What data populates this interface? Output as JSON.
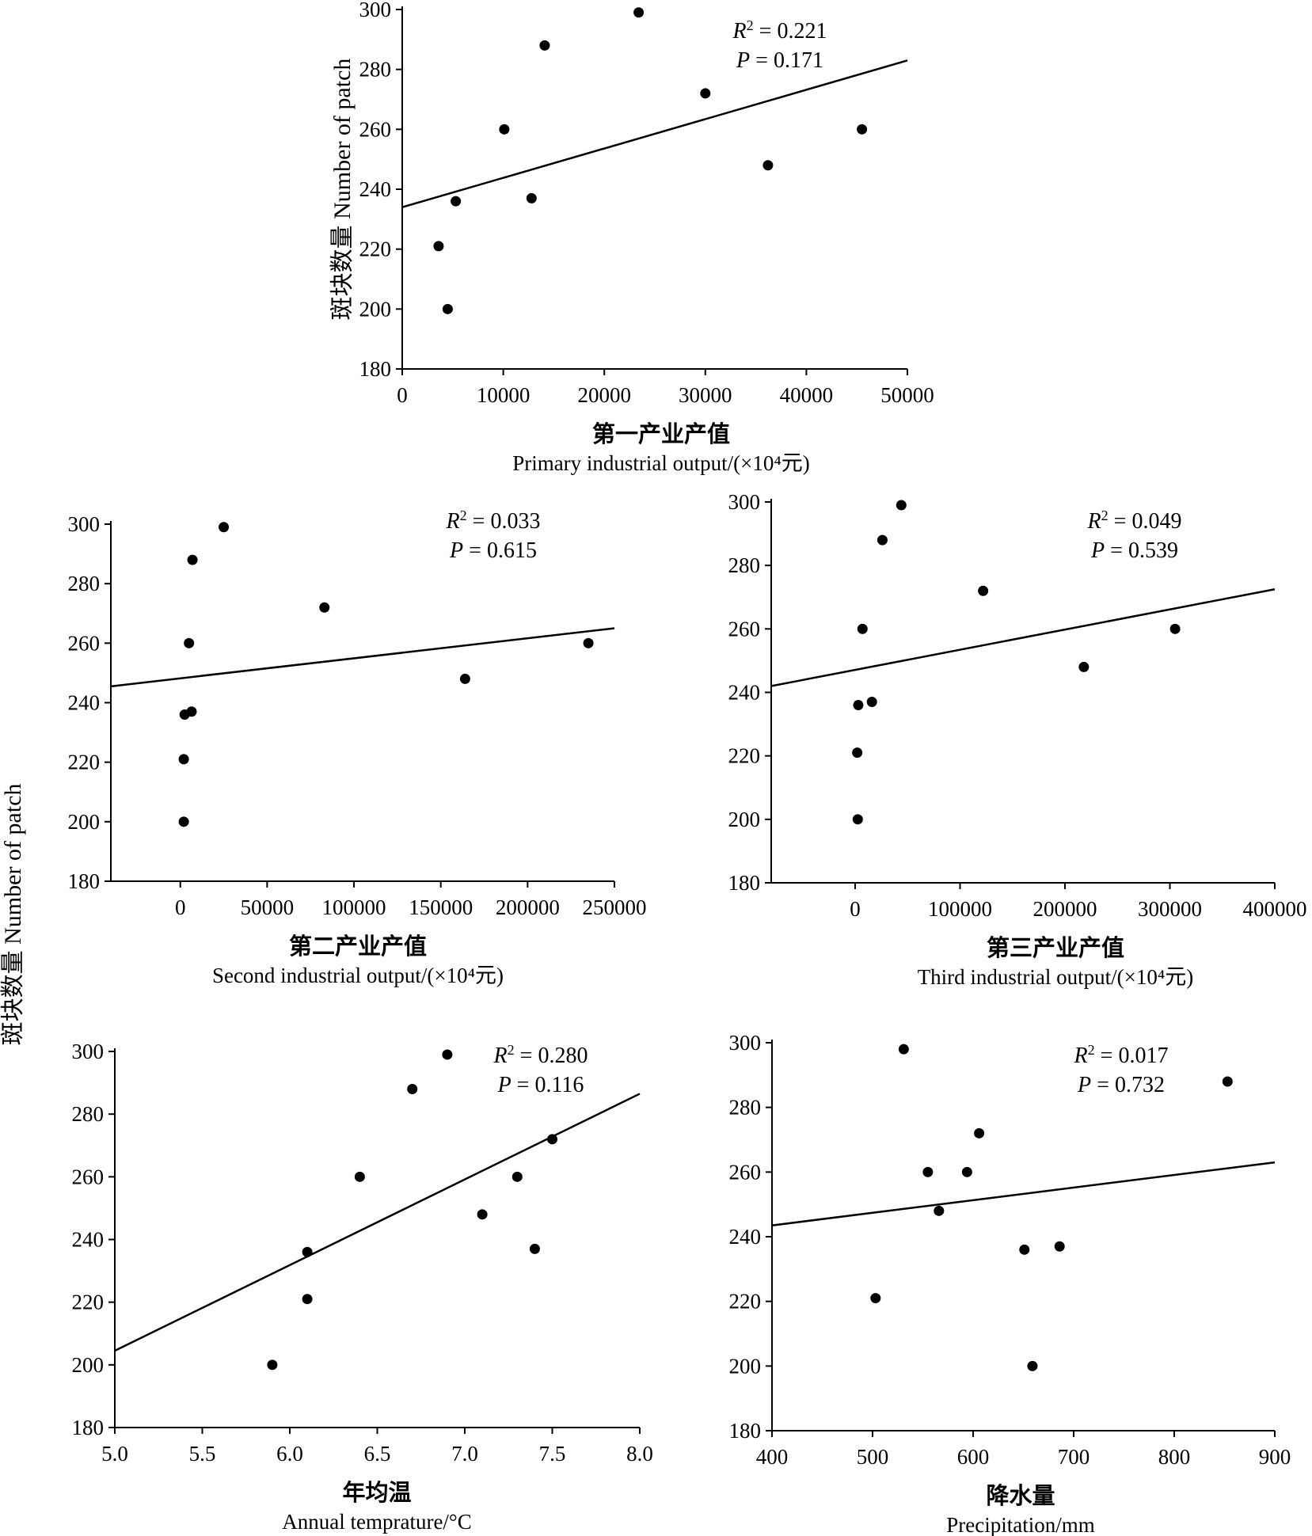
{
  "ylabel": "斑块数量 Number of patch",
  "chart_data": [
    {
      "type": "scatter",
      "xlabel_cn": "第一产业产值",
      "xlabel_en": "Primary industrial output/(×10⁴元)",
      "ylabel": "斑块数量 Number of patch",
      "xlim": [
        0,
        50000
      ],
      "ylim": [
        180,
        300
      ],
      "xticks": [
        0,
        10000,
        20000,
        30000,
        40000,
        50000
      ],
      "yticks": [
        180,
        200,
        220,
        240,
        260,
        280,
        300
      ],
      "points": [
        [
          3600,
          221
        ],
        [
          4500,
          200
        ],
        [
          5300,
          236
        ],
        [
          10100,
          260
        ],
        [
          12800,
          237
        ],
        [
          14100,
          288
        ],
        [
          23400,
          299
        ],
        [
          30000,
          272
        ],
        [
          36200,
          248
        ],
        [
          45500,
          260
        ]
      ],
      "fit": {
        "x": [
          0,
          50000
        ],
        "y": [
          234,
          283
        ]
      },
      "r2_label": "R",
      "r2_sup": "2",
      "r2_value": " = 0.221",
      "p_label": "P",
      "p_value": " = 0.171"
    },
    {
      "type": "scatter",
      "xlabel_cn": "第二产业产值",
      "xlabel_en": "Second  industrial output/(×10⁴元)",
      "xlim": [
        -40000,
        250000
      ],
      "ylim": [
        180,
        300
      ],
      "xticks": [
        0,
        50000,
        100000,
        150000,
        200000,
        250000
      ],
      "yticks": [
        180,
        200,
        220,
        240,
        260,
        280,
        300
      ],
      "points": [
        [
          2000,
          200
        ],
        [
          2000,
          221
        ],
        [
          2500,
          236
        ],
        [
          5000,
          260
        ],
        [
          6500,
          237
        ],
        [
          7000,
          288
        ],
        [
          25000,
          299
        ],
        [
          83000,
          272
        ],
        [
          164000,
          248
        ],
        [
          235000,
          260
        ]
      ],
      "fit": {
        "x": [
          -40000,
          250000
        ],
        "y": [
          245.5,
          265
        ]
      },
      "r2_label": "R",
      "r2_sup": "2",
      "r2_value": " = 0.033",
      "p_label": "P",
      "p_value": " = 0.615"
    },
    {
      "type": "scatter",
      "xlabel_cn": "第三产业产值",
      "xlabel_en": "Third  industrial output/(×10⁴元)",
      "xlim": [
        -80000,
        400000
      ],
      "ylim": [
        180,
        300
      ],
      "xticks": [
        0,
        100000,
        200000,
        300000,
        400000
      ],
      "yticks": [
        180,
        200,
        220,
        240,
        260,
        280,
        300
      ],
      "points": [
        [
          2500,
          200
        ],
        [
          2000,
          221
        ],
        [
          3000,
          236
        ],
        [
          7000,
          260
        ],
        [
          16000,
          237
        ],
        [
          26000,
          288
        ],
        [
          44000,
          299
        ],
        [
          122000,
          272
        ],
        [
          218000,
          248
        ],
        [
          305000,
          260
        ]
      ],
      "fit": {
        "x": [
          -80000,
          400000
        ],
        "y": [
          242,
          272.5
        ]
      },
      "r2_label": "R",
      "r2_sup": "2",
      "r2_value": " = 0.049",
      "p_label": "P",
      "p_value": " = 0.539"
    },
    {
      "type": "scatter",
      "xlabel_cn": "年均温",
      "xlabel_en": "Annual temprature/°C",
      "xlim": [
        5.0,
        8.0
      ],
      "ylim": [
        180,
        300
      ],
      "xticks": [
        "5.0",
        "5.5",
        "6.0",
        "6.5",
        "7.0",
        "7.5",
        "8.0"
      ],
      "yticks": [
        180,
        200,
        220,
        240,
        260,
        280,
        300
      ],
      "points": [
        [
          5.9,
          200
        ],
        [
          6.1,
          221
        ],
        [
          6.1,
          236
        ],
        [
          6.4,
          260
        ],
        [
          6.7,
          288
        ],
        [
          6.9,
          299
        ],
        [
          7.1,
          248
        ],
        [
          7.3,
          260
        ],
        [
          7.4,
          237
        ],
        [
          7.5,
          272
        ]
      ],
      "fit": {
        "x": [
          5.0,
          8.0
        ],
        "y": [
          204.5,
          286.5
        ]
      },
      "r2_label": "R",
      "r2_sup": "2",
      "r2_value": " = 0.280",
      "p_label": "P",
      "p_value": " = 0.116"
    },
    {
      "type": "scatter",
      "xlabel_cn": "降水量",
      "xlabel_en": "Precipitation/mm",
      "xlim": [
        400,
        900
      ],
      "ylim": [
        180,
        300
      ],
      "xticks": [
        400,
        500,
        600,
        700,
        800,
        900
      ],
      "yticks": [
        180,
        200,
        220,
        240,
        260,
        280,
        300
      ],
      "points": [
        [
          503,
          221
        ],
        [
          531,
          298
        ],
        [
          555,
          260
        ],
        [
          566,
          248
        ],
        [
          594,
          260
        ],
        [
          606,
          272
        ],
        [
          651,
          236
        ],
        [
          659,
          200
        ],
        [
          686,
          237
        ],
        [
          853,
          288
        ]
      ],
      "fit": {
        "x": [
          400,
          900
        ],
        "y": [
          243.5,
          263
        ]
      },
      "r2_label": "R",
      "r2_sup": "2",
      "r2_value": " = 0.017",
      "p_label": "P",
      "p_value": " = 0.732"
    }
  ]
}
